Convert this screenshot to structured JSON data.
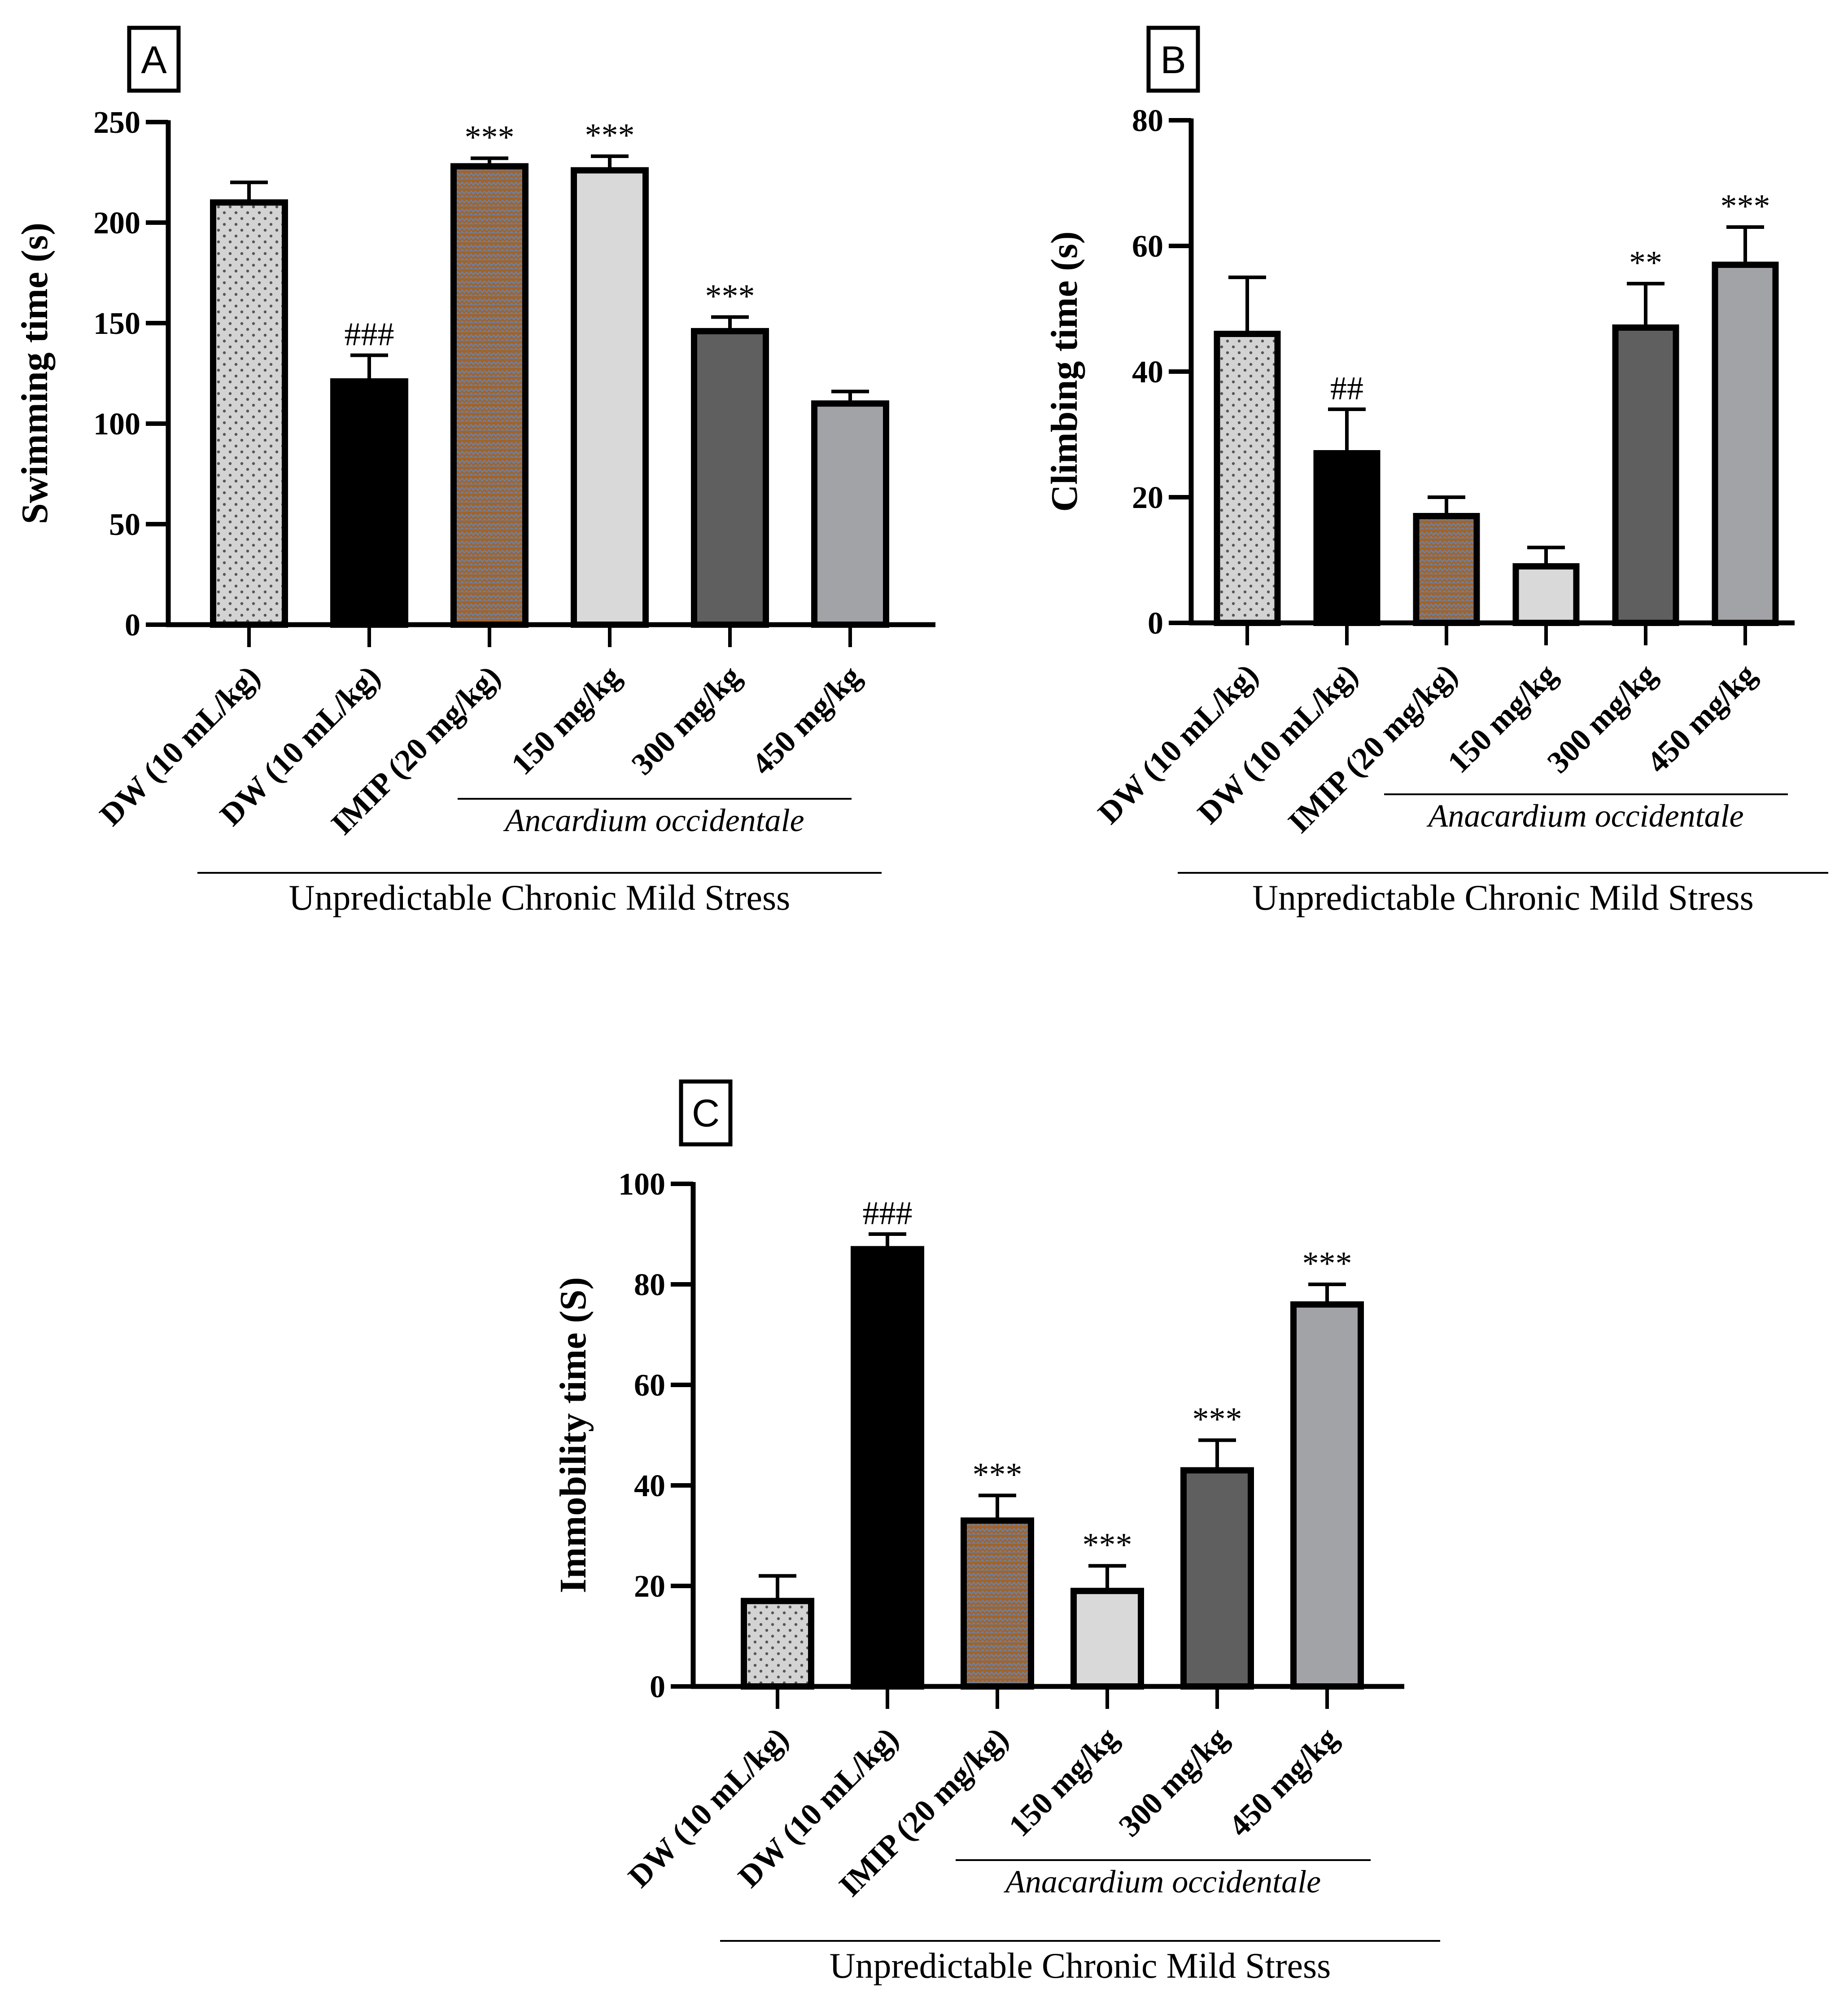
{
  "chart_data": [
    {
      "panel": "A",
      "type": "bar",
      "ylabel": "Swimming time (s)",
      "ylim": [
        0,
        250
      ],
      "yticks": [
        0,
        50,
        100,
        150,
        200,
        250
      ],
      "categories": [
        "DW (10 mL/kg)",
        "DW (10 mL/kg)",
        "IMIP (20 mg/kg)",
        "150 mg/kg",
        "300 mg/kg",
        "450 mg/kg"
      ],
      "values": [
        210,
        121,
        228,
        226,
        146,
        110
      ],
      "errors": [
        10,
        13,
        4,
        7,
        7,
        6
      ],
      "annotations": [
        "",
        "###",
        "***",
        "***",
        "***",
        ""
      ],
      "subgroup_label": "Ancardium occidentale",
      "group_label": "Unpredictable Chronic Mild Stress"
    },
    {
      "panel": "B",
      "type": "bar",
      "ylabel": "Climbing time (s)",
      "ylim": [
        0,
        80
      ],
      "yticks": [
        0,
        20,
        40,
        60,
        80
      ],
      "categories": [
        "DW (10 mL/kg)",
        "DW (10 mL/kg)",
        "IMIP (20 mg/kg)",
        "150 mg/kg",
        "300 mg/kg",
        "450 mg/kg"
      ],
      "values": [
        46,
        27,
        17,
        9,
        47,
        57
      ],
      "errors": [
        9,
        7,
        3,
        3,
        7,
        6
      ],
      "annotations": [
        "",
        "##",
        "",
        "",
        "**",
        "***"
      ],
      "subgroup_label": "Anacardium occidentale",
      "group_label": "Unpredictable Chronic Mild Stress"
    },
    {
      "panel": "C",
      "type": "bar",
      "ylabel": "Immobility time (S)",
      "ylim": [
        0,
        100
      ],
      "yticks": [
        0,
        20,
        40,
        60,
        80,
        100
      ],
      "categories": [
        "DW (10 mL/kg)",
        "DW (10 mL/kg)",
        "IMIP (20 mg/kg)",
        "150 mg/kg",
        "300 mg/kg",
        "450 mg/kg"
      ],
      "values": [
        17,
        87,
        33,
        19,
        43,
        76
      ],
      "errors": [
        5,
        3,
        5,
        5,
        6,
        4
      ],
      "annotations": [
        "",
        "###",
        "***",
        "***",
        "***",
        "***"
      ],
      "subgroup_label": "Anacardium occidentale",
      "group_label": "Unpredictable Chronic Mild Stress"
    }
  ],
  "bar_styles": [
    {
      "fill": "#d3d3d3",
      "pattern": "dots"
    },
    {
      "fill": "#000000",
      "pattern": "none"
    },
    {
      "fill": "#a0642a",
      "pattern": "zigzag"
    },
    {
      "fill": "#d9d9d9",
      "pattern": "none"
    },
    {
      "fill": "#5f5f5f",
      "pattern": "none"
    },
    {
      "fill": "#a2a3a7",
      "pattern": "none"
    }
  ]
}
